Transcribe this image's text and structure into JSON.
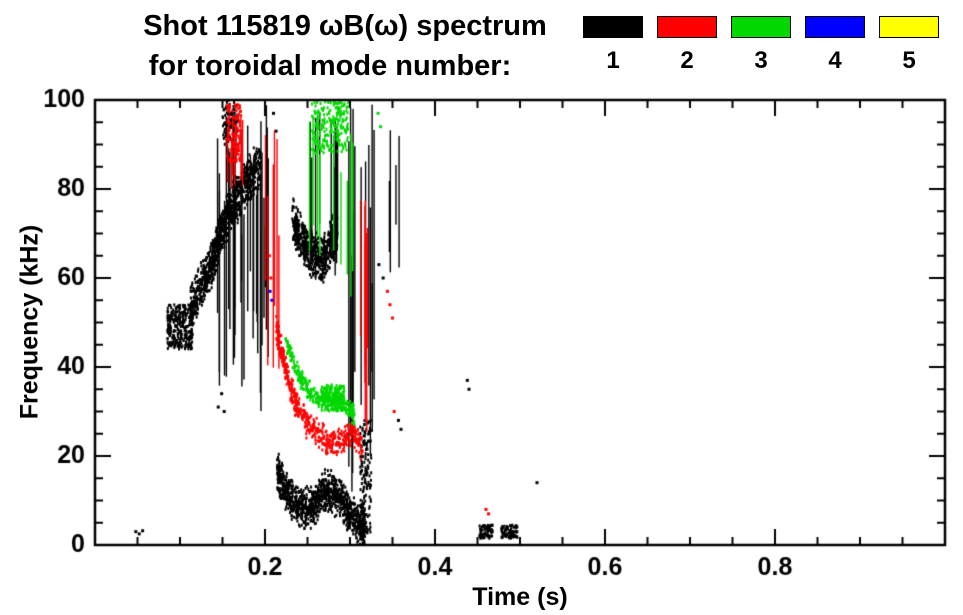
{
  "title": {
    "line1": "Shot 115819 ωB(ω) spectrum",
    "line2": "for toroidal mode number:"
  },
  "legend": {
    "items": [
      {
        "label": "1",
        "color": "#000000"
      },
      {
        "label": "2",
        "color": "#ff0000"
      },
      {
        "label": "3",
        "color": "#00d800"
      },
      {
        "label": "4",
        "color": "#0000ff"
      },
      {
        "label": "5",
        "color": "#ffff00"
      }
    ]
  },
  "chart_data": {
    "type": "scatter",
    "title": "Shot 115819 ωB(ω) spectrum for toroidal mode number: 1 2 3 4 5",
    "xlabel": "Time (s)",
    "ylabel": "Frequency (kHz)",
    "xlim": [
      0.0,
      1.0
    ],
    "ylim": [
      0,
      100
    ],
    "xticks": [
      0.2,
      0.4,
      0.6,
      0.8
    ],
    "xtick_labels": [
      "0.2",
      "0.4",
      "0.6",
      "0.8"
    ],
    "x_minor_step": 0.05,
    "yticks": [
      0,
      20,
      40,
      60,
      80,
      100
    ],
    "ytick_labels": [
      "0",
      "20",
      "40",
      "60",
      "80",
      "100"
    ],
    "y_minor_step": 5,
    "grid": false,
    "legend_position": "top-right",
    "series": [
      {
        "name": "toroidal mode n=1",
        "color": "#000000",
        "clusters": [
          {
            "kind": "blob",
            "t": [
              0.085,
              0.115
            ],
            "f": [
              44,
              54
            ],
            "n": 280
          },
          {
            "kind": "band",
            "path": [
              [
                0.112,
                53
              ],
              [
                0.125,
                58
              ],
              [
                0.135,
                62
              ],
              [
                0.142,
                66
              ],
              [
                0.15,
                71
              ],
              [
                0.16,
                76
              ],
              [
                0.17,
                79
              ],
              [
                0.182,
                82
              ],
              [
                0.195,
                86
              ]
            ],
            "halfwidth": 6,
            "n": 950
          },
          {
            "kind": "vstreaks",
            "t": [
              0.142,
              0.205
            ],
            "f": [
              30,
              100
            ],
            "count": 30
          },
          {
            "kind": "blob",
            "t": [
              0.15,
              0.168
            ],
            "f": [
              90,
              100
            ],
            "n": 90
          },
          {
            "kind": "band",
            "path": [
              [
                0.232,
                73
              ],
              [
                0.243,
                69
              ],
              [
                0.255,
                65
              ],
              [
                0.268,
                64
              ],
              [
                0.278,
                68
              ],
              [
                0.285,
                71
              ]
            ],
            "halfwidth": 6,
            "n": 650
          },
          {
            "kind": "vstreaks",
            "t": [
              0.252,
              0.292
            ],
            "f": [
              58,
              100
            ],
            "count": 10
          },
          {
            "kind": "band",
            "path": [
              [
                0.214,
                17
              ],
              [
                0.222,
                13
              ],
              [
                0.232,
                10
              ],
              [
                0.245,
                8
              ],
              [
                0.258,
                9
              ],
              [
                0.268,
                12
              ],
              [
                0.278,
                12
              ],
              [
                0.29,
                10
              ],
              [
                0.3,
                7
              ],
              [
                0.31,
                5
              ],
              [
                0.318,
                4
              ]
            ],
            "halfwidth": 5,
            "n": 1100
          },
          {
            "kind": "vstreaks",
            "t": [
              0.298,
              0.33
            ],
            "f": [
              4,
              100
            ],
            "count": 14
          },
          {
            "kind": "blob",
            "t": [
              0.312,
              0.325
            ],
            "f": [
              2,
              28
            ],
            "n": 160
          },
          {
            "kind": "vstreaks",
            "t": [
              0.345,
              0.365
            ],
            "f": [
              60,
              95
            ],
            "count": 4
          },
          {
            "kind": "dots",
            "points": [
              [
                0.048,
                3
              ],
              [
                0.052,
                2.5
              ],
              [
                0.056,
                3.2
              ],
              [
                0.145,
                31
              ],
              [
                0.149,
                34
              ],
              [
                0.152,
                30
              ],
              [
                0.21,
                97
              ],
              [
                0.213,
                93
              ],
              [
                0.334,
                63
              ],
              [
                0.339,
                60
              ],
              [
                0.357,
                28
              ],
              [
                0.36,
                26
              ],
              [
                0.438,
                37
              ],
              [
                0.44,
                35
              ],
              [
                0.52,
                14
              ]
            ],
            "size": 3
          },
          {
            "kind": "blob",
            "t": [
              0.452,
              0.468
            ],
            "f": [
              1.5,
              4.5
            ],
            "n": 70
          },
          {
            "kind": "blob",
            "t": [
              0.478,
              0.497
            ],
            "f": [
              1.5,
              4.5
            ],
            "n": 80
          }
        ]
      },
      {
        "name": "toroidal mode n=2",
        "color": "#ff0000",
        "clusters": [
          {
            "kind": "blob",
            "t": [
              0.155,
              0.172
            ],
            "f": [
              86,
              99
            ],
            "n": 110
          },
          {
            "kind": "vstreaks",
            "t": [
              0.152,
              0.178
            ],
            "f": [
              78,
              100
            ],
            "count": 7
          },
          {
            "kind": "vstreaks",
            "t": [
              0.198,
              0.218
            ],
            "f": [
              28,
              100
            ],
            "count": 7
          },
          {
            "kind": "band",
            "path": [
              [
                0.213,
                49
              ],
              [
                0.22,
                43
              ],
              [
                0.228,
                37
              ],
              [
                0.238,
                31
              ],
              [
                0.25,
                27
              ],
              [
                0.262,
                25
              ],
              [
                0.275,
                23
              ],
              [
                0.29,
                23
              ],
              [
                0.302,
                25
              ],
              [
                0.315,
                22
              ]
            ],
            "halfwidth": 3.5,
            "n": 520
          },
          {
            "kind": "vstreaks",
            "t": [
              0.302,
              0.322
            ],
            "f": [
              18,
              88
            ],
            "count": 6
          },
          {
            "kind": "dots",
            "points": [
              [
                0.205,
                65
              ],
              [
                0.207,
                60
              ],
              [
                0.344,
                57
              ],
              [
                0.347,
                54
              ],
              [
                0.35,
                51
              ],
              [
                0.352,
                30
              ],
              [
                0.46,
                8
              ],
              [
                0.463,
                7
              ]
            ],
            "size": 3
          }
        ]
      },
      {
        "name": "toroidal mode n=3",
        "color": "#00d800",
        "clusters": [
          {
            "kind": "blob",
            "t": [
              0.255,
              0.298
            ],
            "f": [
              88,
              100
            ],
            "n": 230
          },
          {
            "kind": "vstreaks",
            "t": [
              0.252,
              0.305
            ],
            "f": [
              55,
              100
            ],
            "count": 9
          },
          {
            "kind": "band",
            "path": [
              [
                0.224,
                46
              ],
              [
                0.232,
                42
              ],
              [
                0.24,
                38
              ],
              [
                0.25,
                35
              ],
              [
                0.262,
                33
              ],
              [
                0.274,
                32
              ],
              [
                0.287,
                33
              ],
              [
                0.298,
                31
              ],
              [
                0.305,
                29
              ]
            ],
            "halfwidth": 2.5,
            "n": 340
          },
          {
            "kind": "blob",
            "t": [
              0.266,
              0.294
            ],
            "f": [
              30,
              36
            ],
            "n": 160
          },
          {
            "kind": "dots",
            "points": [
              [
                0.333,
                97
              ],
              [
                0.336,
                94
              ]
            ],
            "size": 3
          }
        ]
      },
      {
        "name": "toroidal mode n=4",
        "color": "#0000ff",
        "clusters": [
          {
            "kind": "dots",
            "points": [
              [
                0.206,
                57
              ],
              [
                0.208,
                55
              ]
            ],
            "size": 3
          }
        ]
      },
      {
        "name": "toroidal mode n=5",
        "color": "#ffff00",
        "clusters": []
      }
    ]
  }
}
